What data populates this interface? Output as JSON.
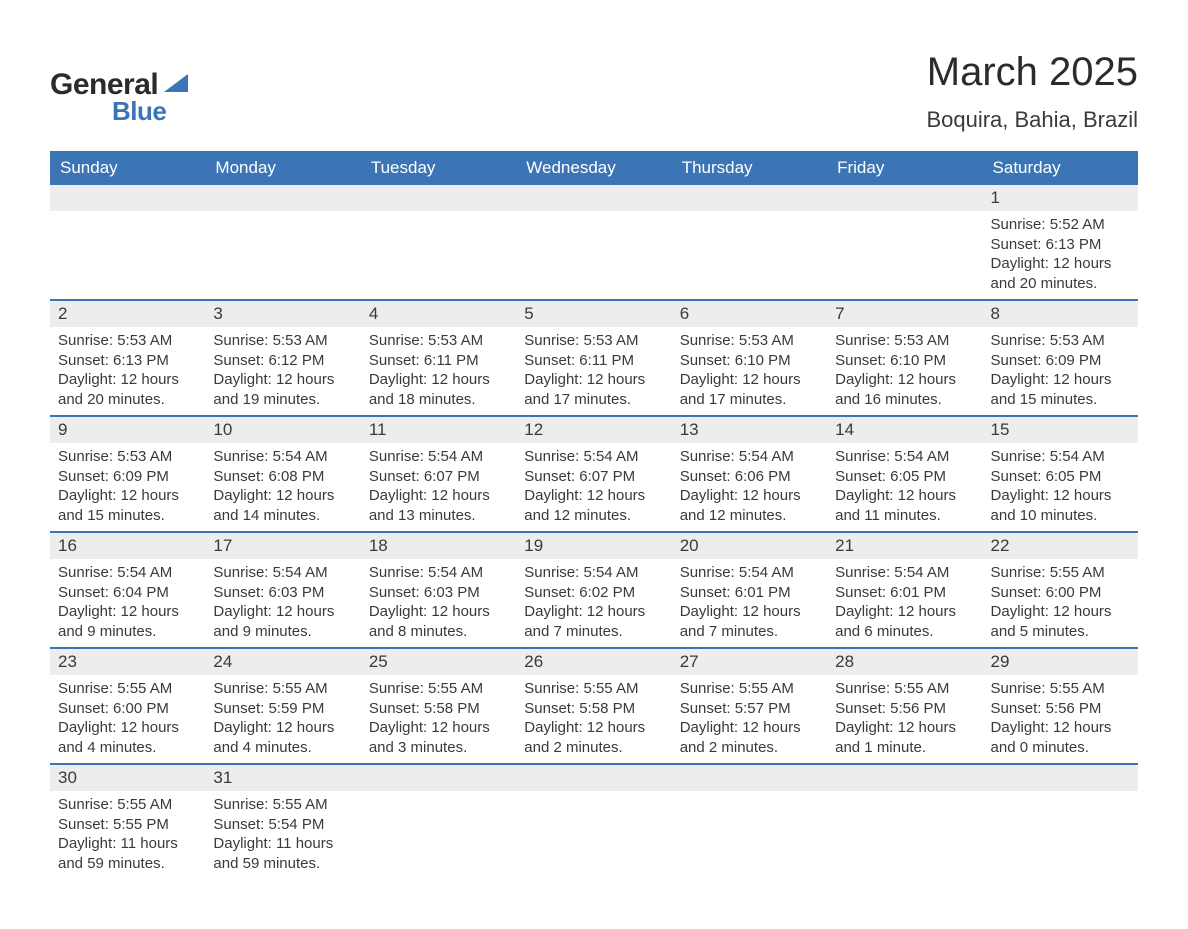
{
  "logo": {
    "text_general": "General",
    "text_blue": "Blue",
    "sail_color": "#3b75b5",
    "text_color": "#2b2b2b"
  },
  "title": "March 2025",
  "location": "Boquira, Bahia, Brazil",
  "colors": {
    "header_bg": "#3b75b5",
    "header_text": "#ffffff",
    "daynum_bg": "#ededed",
    "body_text": "#3a3a3a",
    "rule": "#3b75b5",
    "page_bg": "#ffffff"
  },
  "day_headers": [
    "Sunday",
    "Monday",
    "Tuesday",
    "Wednesday",
    "Thursday",
    "Friday",
    "Saturday"
  ],
  "label_sunrise": "Sunrise: ",
  "label_sunset": "Sunset: ",
  "label_daylight_prefix": "Daylight: ",
  "weeks": [
    [
      null,
      null,
      null,
      null,
      null,
      null,
      {
        "n": "1",
        "sunrise": "5:52 AM",
        "sunset": "6:13 PM",
        "daylight": "12 hours and 20 minutes."
      }
    ],
    [
      {
        "n": "2",
        "sunrise": "5:53 AM",
        "sunset": "6:13 PM",
        "daylight": "12 hours and 20 minutes."
      },
      {
        "n": "3",
        "sunrise": "5:53 AM",
        "sunset": "6:12 PM",
        "daylight": "12 hours and 19 minutes."
      },
      {
        "n": "4",
        "sunrise": "5:53 AM",
        "sunset": "6:11 PM",
        "daylight": "12 hours and 18 minutes."
      },
      {
        "n": "5",
        "sunrise": "5:53 AM",
        "sunset": "6:11 PM",
        "daylight": "12 hours and 17 minutes."
      },
      {
        "n": "6",
        "sunrise": "5:53 AM",
        "sunset": "6:10 PM",
        "daylight": "12 hours and 17 minutes."
      },
      {
        "n": "7",
        "sunrise": "5:53 AM",
        "sunset": "6:10 PM",
        "daylight": "12 hours and 16 minutes."
      },
      {
        "n": "8",
        "sunrise": "5:53 AM",
        "sunset": "6:09 PM",
        "daylight": "12 hours and 15 minutes."
      }
    ],
    [
      {
        "n": "9",
        "sunrise": "5:53 AM",
        "sunset": "6:09 PM",
        "daylight": "12 hours and 15 minutes."
      },
      {
        "n": "10",
        "sunrise": "5:54 AM",
        "sunset": "6:08 PM",
        "daylight": "12 hours and 14 minutes."
      },
      {
        "n": "11",
        "sunrise": "5:54 AM",
        "sunset": "6:07 PM",
        "daylight": "12 hours and 13 minutes."
      },
      {
        "n": "12",
        "sunrise": "5:54 AM",
        "sunset": "6:07 PM",
        "daylight": "12 hours and 12 minutes."
      },
      {
        "n": "13",
        "sunrise": "5:54 AM",
        "sunset": "6:06 PM",
        "daylight": "12 hours and 12 minutes."
      },
      {
        "n": "14",
        "sunrise": "5:54 AM",
        "sunset": "6:05 PM",
        "daylight": "12 hours and 11 minutes."
      },
      {
        "n": "15",
        "sunrise": "5:54 AM",
        "sunset": "6:05 PM",
        "daylight": "12 hours and 10 minutes."
      }
    ],
    [
      {
        "n": "16",
        "sunrise": "5:54 AM",
        "sunset": "6:04 PM",
        "daylight": "12 hours and 9 minutes."
      },
      {
        "n": "17",
        "sunrise": "5:54 AM",
        "sunset": "6:03 PM",
        "daylight": "12 hours and 9 minutes."
      },
      {
        "n": "18",
        "sunrise": "5:54 AM",
        "sunset": "6:03 PM",
        "daylight": "12 hours and 8 minutes."
      },
      {
        "n": "19",
        "sunrise": "5:54 AM",
        "sunset": "6:02 PM",
        "daylight": "12 hours and 7 minutes."
      },
      {
        "n": "20",
        "sunrise": "5:54 AM",
        "sunset": "6:01 PM",
        "daylight": "12 hours and 7 minutes."
      },
      {
        "n": "21",
        "sunrise": "5:54 AM",
        "sunset": "6:01 PM",
        "daylight": "12 hours and 6 minutes."
      },
      {
        "n": "22",
        "sunrise": "5:55 AM",
        "sunset": "6:00 PM",
        "daylight": "12 hours and 5 minutes."
      }
    ],
    [
      {
        "n": "23",
        "sunrise": "5:55 AM",
        "sunset": "6:00 PM",
        "daylight": "12 hours and 4 minutes."
      },
      {
        "n": "24",
        "sunrise": "5:55 AM",
        "sunset": "5:59 PM",
        "daylight": "12 hours and 4 minutes."
      },
      {
        "n": "25",
        "sunrise": "5:55 AM",
        "sunset": "5:58 PM",
        "daylight": "12 hours and 3 minutes."
      },
      {
        "n": "26",
        "sunrise": "5:55 AM",
        "sunset": "5:58 PM",
        "daylight": "12 hours and 2 minutes."
      },
      {
        "n": "27",
        "sunrise": "5:55 AM",
        "sunset": "5:57 PM",
        "daylight": "12 hours and 2 minutes."
      },
      {
        "n": "28",
        "sunrise": "5:55 AM",
        "sunset": "5:56 PM",
        "daylight": "12 hours and 1 minute."
      },
      {
        "n": "29",
        "sunrise": "5:55 AM",
        "sunset": "5:56 PM",
        "daylight": "12 hours and 0 minutes."
      }
    ],
    [
      {
        "n": "30",
        "sunrise": "5:55 AM",
        "sunset": "5:55 PM",
        "daylight": "11 hours and 59 minutes."
      },
      {
        "n": "31",
        "sunrise": "5:55 AM",
        "sunset": "5:54 PM",
        "daylight": "11 hours and 59 minutes."
      },
      null,
      null,
      null,
      null,
      null
    ]
  ]
}
